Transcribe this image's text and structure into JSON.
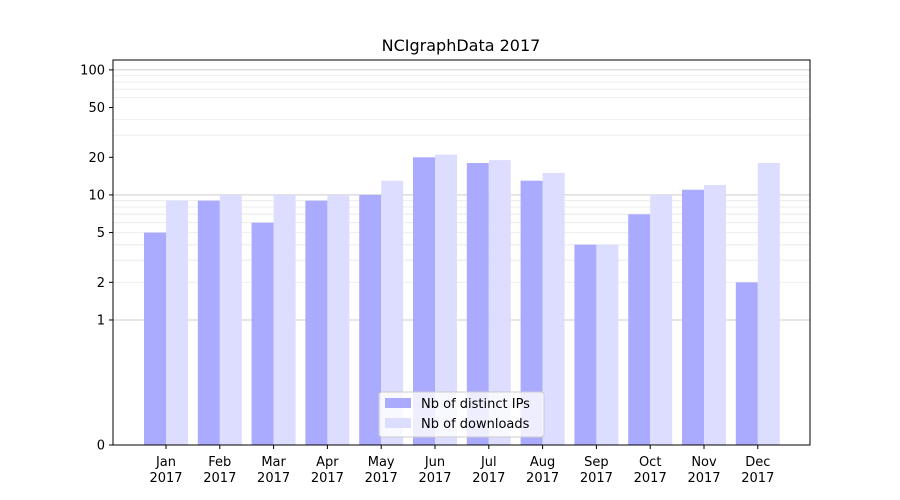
{
  "chart_data": {
    "type": "bar",
    "title": "NCIgraphData 2017",
    "xlabel": "",
    "ylabel": "",
    "y_scale": "symlog",
    "ylim": [
      0,
      120
    ],
    "y_ticks": [
      {
        "value": 0,
        "label": "0"
      },
      {
        "value": 1,
        "label": "1"
      },
      {
        "value": 2,
        "label": "2"
      },
      {
        "value": 5,
        "label": "5"
      },
      {
        "value": 10,
        "label": "10"
      },
      {
        "value": 20,
        "label": "20"
      },
      {
        "value": 50,
        "label": "50"
      },
      {
        "value": 100,
        "label": "100"
      }
    ],
    "categories": [
      {
        "month": "Jan",
        "year": "2017"
      },
      {
        "month": "Feb",
        "year": "2017"
      },
      {
        "month": "Mar",
        "year": "2017"
      },
      {
        "month": "Apr",
        "year": "2017"
      },
      {
        "month": "May",
        "year": "2017"
      },
      {
        "month": "Jun",
        "year": "2017"
      },
      {
        "month": "Jul",
        "year": "2017"
      },
      {
        "month": "Aug",
        "year": "2017"
      },
      {
        "month": "Sep",
        "year": "2017"
      },
      {
        "month": "Oct",
        "year": "2017"
      },
      {
        "month": "Nov",
        "year": "2017"
      },
      {
        "month": "Dec",
        "year": "2017"
      }
    ],
    "series": [
      {
        "name": "Nb of distinct IPs",
        "color": "#aaaaff",
        "values": [
          5,
          9,
          6,
          9,
          10,
          20,
          18,
          13,
          4,
          7,
          11,
          2
        ]
      },
      {
        "name": "Nb of downloads",
        "color": "#ddddff",
        "values": [
          9,
          10,
          10,
          10,
          13,
          21,
          19,
          15,
          4,
          10,
          12,
          18
        ]
      }
    ],
    "grid": true,
    "legend_position": "lower-center"
  }
}
